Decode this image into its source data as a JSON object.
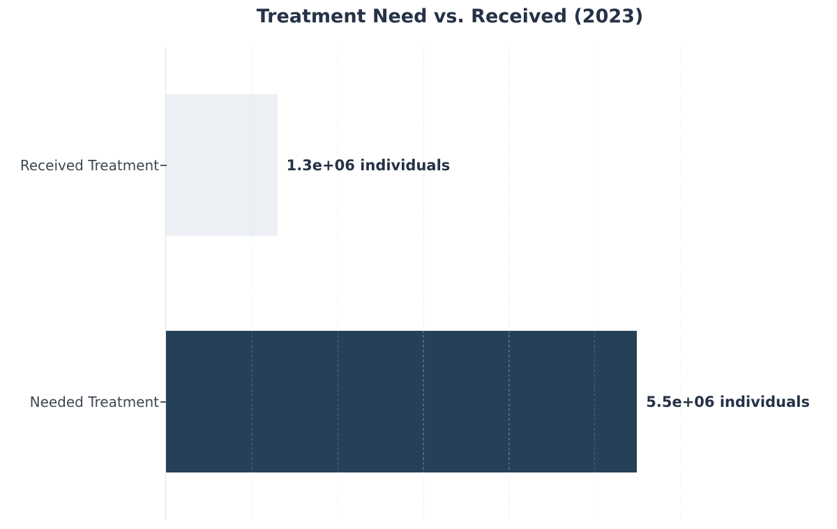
{
  "chart_data": {
    "type": "bar",
    "orientation": "horizontal",
    "title": "Treatment Need vs. Received (2023)",
    "categories": [
      "Received Treatment",
      "Needed Treatment"
    ],
    "values": [
      1300000,
      5500000
    ],
    "value_labels": [
      "1.3e+06 individuals",
      "5.5e+06 individuals"
    ],
    "bar_colors": [
      "#ECF0F4",
      "#274059"
    ],
    "xlim": [
      0,
      6630000
    ],
    "gridline_values": [
      1000000,
      2000000,
      3000000,
      4000000,
      5000000,
      6000000
    ],
    "grid_style": "dashed-vertical",
    "bar_height_frac": 0.6,
    "xlabel": "",
    "ylabel": "",
    "legend": "none",
    "x_tick_labels": "none"
  },
  "colors": {
    "background": "#FFFFFF",
    "title_text": "#263247",
    "value_label_text": "#263247",
    "category_label_text": "#3D4653",
    "spine": "#DCE3EB",
    "tick": "#4A5563",
    "bar_received": "#ECF0F4",
    "bar_needed": "#274059"
  }
}
